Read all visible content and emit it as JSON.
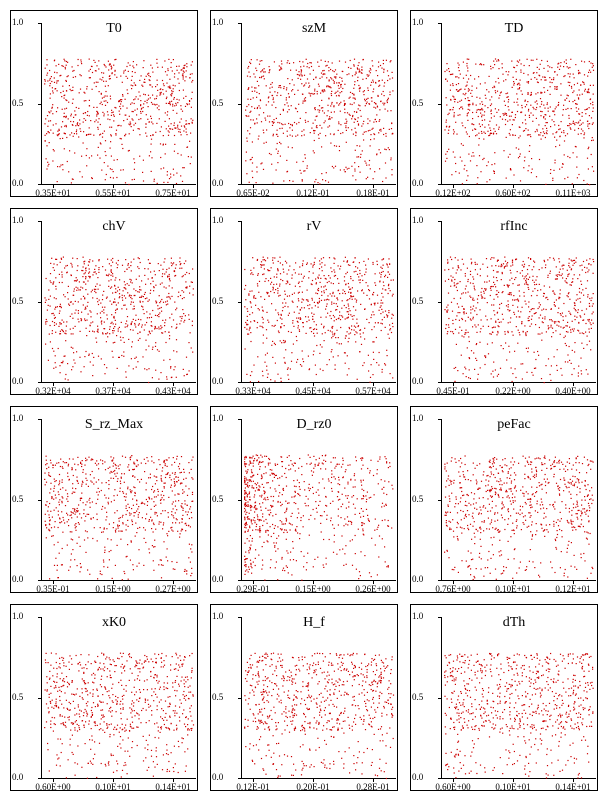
{
  "chart_data": [
    {
      "type": "scatter",
      "title": "T0",
      "ylim": [
        0,
        1
      ],
      "yticks": [
        "1.0",
        "0.5",
        "0.0"
      ],
      "xticks": [
        "0.35E+01",
        "0.55E+01",
        "0.75E+01"
      ],
      "point_color": "#cc0000",
      "density": "uniform",
      "n_points": 750
    },
    {
      "type": "scatter",
      "title": "szM",
      "ylim": [
        0,
        1
      ],
      "yticks": [
        "1.0",
        "0.5",
        "0.0"
      ],
      "xticks": [
        "0.65E-02",
        "0.12E-01",
        "0.18E-01"
      ],
      "point_color": "#cc0000",
      "density": "uniform",
      "n_points": 750
    },
    {
      "type": "scatter",
      "title": "TD",
      "ylim": [
        0,
        1
      ],
      "yticks": [
        "1.0",
        "0.5",
        "0.0"
      ],
      "xticks": [
        "0.12E+02",
        "0.60E+02",
        "0.11E+03"
      ],
      "point_color": "#cc0000",
      "density": "uniform",
      "n_points": 750
    },
    {
      "type": "scatter",
      "title": "chV",
      "ylim": [
        0,
        1
      ],
      "yticks": [
        "1.0",
        "0.5",
        "0.0"
      ],
      "xticks": [
        "0.32E+04",
        "0.37E+04",
        "0.43E+04"
      ],
      "point_color": "#cc0000",
      "density": "uniform",
      "n_points": 750
    },
    {
      "type": "scatter",
      "title": "rV",
      "ylim": [
        0,
        1
      ],
      "yticks": [
        "1.0",
        "0.5",
        "0.0"
      ],
      "xticks": [
        "0.33E+04",
        "0.45E+04",
        "0.57E+04"
      ],
      "point_color": "#cc0000",
      "density": "uniform",
      "n_points": 750
    },
    {
      "type": "scatter",
      "title": "rfInc",
      "ylim": [
        0,
        1
      ],
      "yticks": [
        "1.0",
        "0.5",
        "0.0"
      ],
      "xticks": [
        "0.45E-01",
        "0.22E+00",
        "0.40E+00"
      ],
      "point_color": "#cc0000",
      "density": "uniform",
      "n_points": 750
    },
    {
      "type": "scatter",
      "title": "S_rz_Max",
      "ylim": [
        0,
        1
      ],
      "yticks": [
        "1.0",
        "0.5",
        "0.0"
      ],
      "xticks": [
        "0.35E-01",
        "0.15E+00",
        "0.27E+00"
      ],
      "point_color": "#cc0000",
      "density": "uniform",
      "n_points": 750
    },
    {
      "type": "scatter",
      "title": "D_rz0",
      "ylim": [
        0,
        1
      ],
      "yticks": [
        "1.0",
        "0.5",
        "0.0"
      ],
      "xticks": [
        "0.29E-01",
        "0.15E+00",
        "0.26E+00"
      ],
      "point_color": "#cc0000",
      "density": "left-skewed",
      "n_points": 750
    },
    {
      "type": "scatter",
      "title": "peFac",
      "ylim": [
        0,
        1
      ],
      "yticks": [
        "1.0",
        "0.5",
        "0.0"
      ],
      "xticks": [
        "0.76E+00",
        "0.10E+01",
        "0.12E+01"
      ],
      "point_color": "#cc0000",
      "density": "uniform",
      "n_points": 750
    },
    {
      "type": "scatter",
      "title": "xK0",
      "ylim": [
        0,
        1
      ],
      "yticks": [
        "1.0",
        "0.5",
        "0.0"
      ],
      "xticks": [
        "0.60E+00",
        "0.10E+01",
        "0.14E+01"
      ],
      "point_color": "#cc0000",
      "density": "uniform",
      "n_points": 750
    },
    {
      "type": "scatter",
      "title": "H_f",
      "ylim": [
        0,
        1
      ],
      "yticks": [
        "1.0",
        "0.5",
        "0.0"
      ],
      "xticks": [
        "0.12E-01",
        "0.20E-01",
        "0.28E-01"
      ],
      "point_color": "#cc0000",
      "density": "uniform",
      "n_points": 750
    },
    {
      "type": "scatter",
      "title": "dTh",
      "ylim": [
        0,
        1
      ],
      "yticks": [
        "1.0",
        "0.5",
        "0.0"
      ],
      "xticks": [
        "0.60E+00",
        "0.10E+01",
        "0.14E+01"
      ],
      "point_color": "#cc0000",
      "density": "uniform",
      "n_points": 750
    }
  ]
}
